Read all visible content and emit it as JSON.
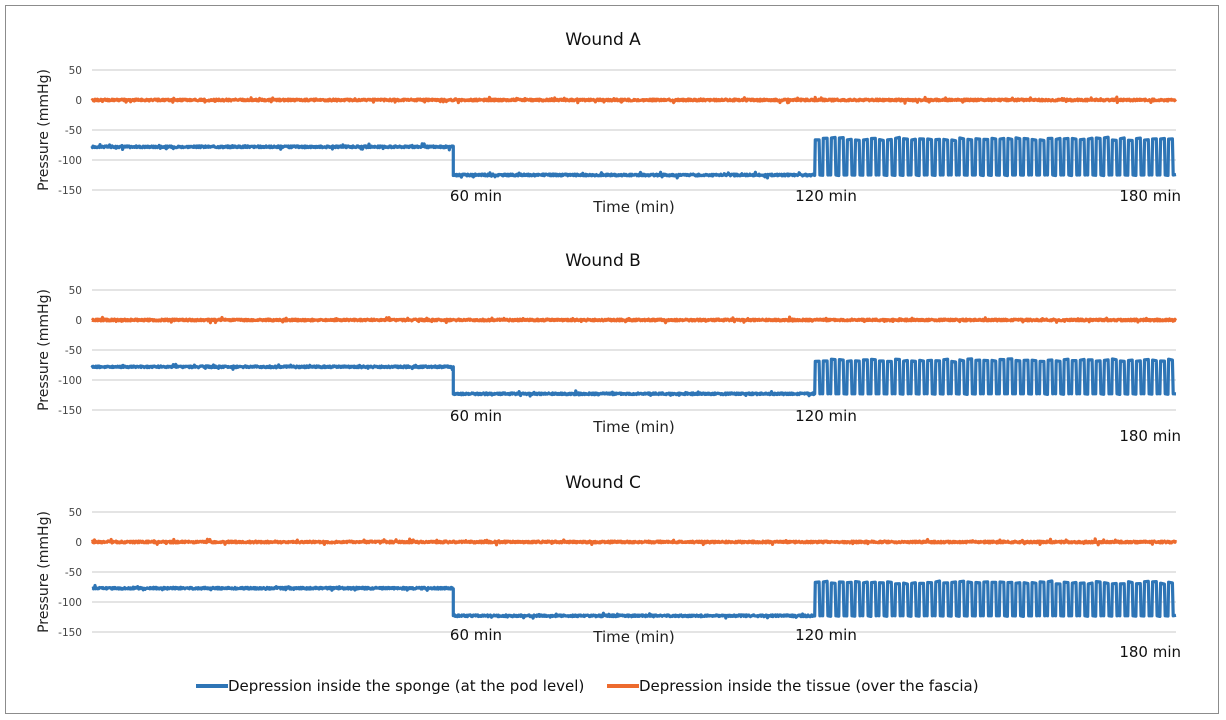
{
  "chart_data": [
    {
      "type": "line",
      "title": "Wound A",
      "xlabel": "Time (min)",
      "ylabel": "Pressure (mmHg)",
      "ylim": [
        -150,
        50
      ],
      "yticks": [
        "50",
        "0",
        "-50",
        "-100",
        "-150"
      ],
      "xlim": [
        0,
        180
      ],
      "markers": [
        "60 min",
        "120 min",
        "180 min"
      ],
      "grid": true,
      "series": [
        {
          "name": "Depression inside the sponge (at the pod level)",
          "color": "#2e75b6",
          "segments": [
            {
              "x_start": 0,
              "x_end": 60,
              "mode": "constant",
              "value": -78
            },
            {
              "x_start": 60,
              "x_end": 120,
              "mode": "constant",
              "value": -125
            },
            {
              "x_start": 120,
              "x_end": 180,
              "mode": "oscillating",
              "low": -125,
              "high": -65,
              "cycles": 45
            }
          ]
        },
        {
          "name": "Depression inside the tissue (over the fascia)",
          "color": "#ed6b2e",
          "segments": [
            {
              "x_start": 0,
              "x_end": 180,
              "mode": "constant",
              "value": 0
            }
          ]
        }
      ]
    },
    {
      "type": "line",
      "title": "Wound B",
      "xlabel": "Time (min)",
      "ylabel": "Pressure (mmHg)",
      "ylim": [
        -150,
        50
      ],
      "yticks": [
        "50",
        "0",
        "-50",
        "-100",
        "-150"
      ],
      "xlim": [
        0,
        180
      ],
      "markers": [
        "60 min",
        "120 min",
        "180 min"
      ],
      "grid": true,
      "series": [
        {
          "name": "Depression inside the sponge (at the pod level)",
          "color": "#2e75b6",
          "segments": [
            {
              "x_start": 0,
              "x_end": 60,
              "mode": "constant",
              "value": -78
            },
            {
              "x_start": 60,
              "x_end": 120,
              "mode": "constant",
              "value": -123
            },
            {
              "x_start": 120,
              "x_end": 180,
              "mode": "oscillating",
              "low": -123,
              "high": -67,
              "cycles": 45
            }
          ]
        },
        {
          "name": "Depression inside the tissue (over the fascia)",
          "color": "#ed6b2e",
          "segments": [
            {
              "x_start": 0,
              "x_end": 180,
              "mode": "constant",
              "value": 0
            }
          ]
        }
      ]
    },
    {
      "type": "line",
      "title": "Wound C",
      "xlabel": "Time (min)",
      "ylabel": "Pressure (mmHg)",
      "ylim": [
        -150,
        50
      ],
      "yticks": [
        "50",
        "0",
        "-50",
        "-100",
        "-150"
      ],
      "xlim": [
        0,
        180
      ],
      "markers": [
        "60 min",
        "120 min",
        "180 min"
      ],
      "grid": true,
      "series": [
        {
          "name": "Depression inside the sponge (at the pod level)",
          "color": "#2e75b6",
          "segments": [
            {
              "x_start": 0,
              "x_end": 60,
              "mode": "constant",
              "value": -77
            },
            {
              "x_start": 60,
              "x_end": 120,
              "mode": "constant",
              "value": -123
            },
            {
              "x_start": 120,
              "x_end": 180,
              "mode": "oscillating",
              "low": -123,
              "high": -68,
              "cycles": 45
            }
          ]
        },
        {
          "name": "Depression inside the tissue (over the fascia)",
          "color": "#ed6b2e",
          "segments": [
            {
              "x_start": 0,
              "x_end": 180,
              "mode": "constant",
              "value": 0
            }
          ]
        }
      ]
    }
  ],
  "legend": {
    "placement": "bottom-center",
    "items": [
      {
        "label": "Depression inside the sponge (at the pod level)",
        "color": "#2e75b6"
      },
      {
        "label": "Depression inside the tissue (over the fascia)",
        "color": "#ed6b2e"
      }
    ]
  }
}
